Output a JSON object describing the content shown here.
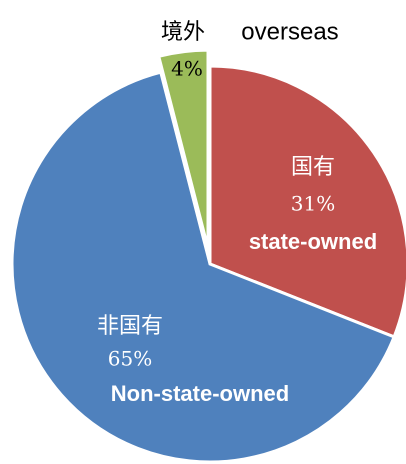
{
  "chart_data": {
    "type": "pie",
    "labels_zh": [
      "国有",
      "非国有",
      "境外"
    ],
    "labels_en": [
      "state-owned",
      "Non-state-owned",
      "overseas"
    ],
    "values": [
      31,
      65,
      4
    ],
    "value_labels": [
      "31%",
      "65%",
      "4%"
    ],
    "colors": [
      "#c0504d",
      "#4f81bd",
      "#9bbb59"
    ]
  }
}
